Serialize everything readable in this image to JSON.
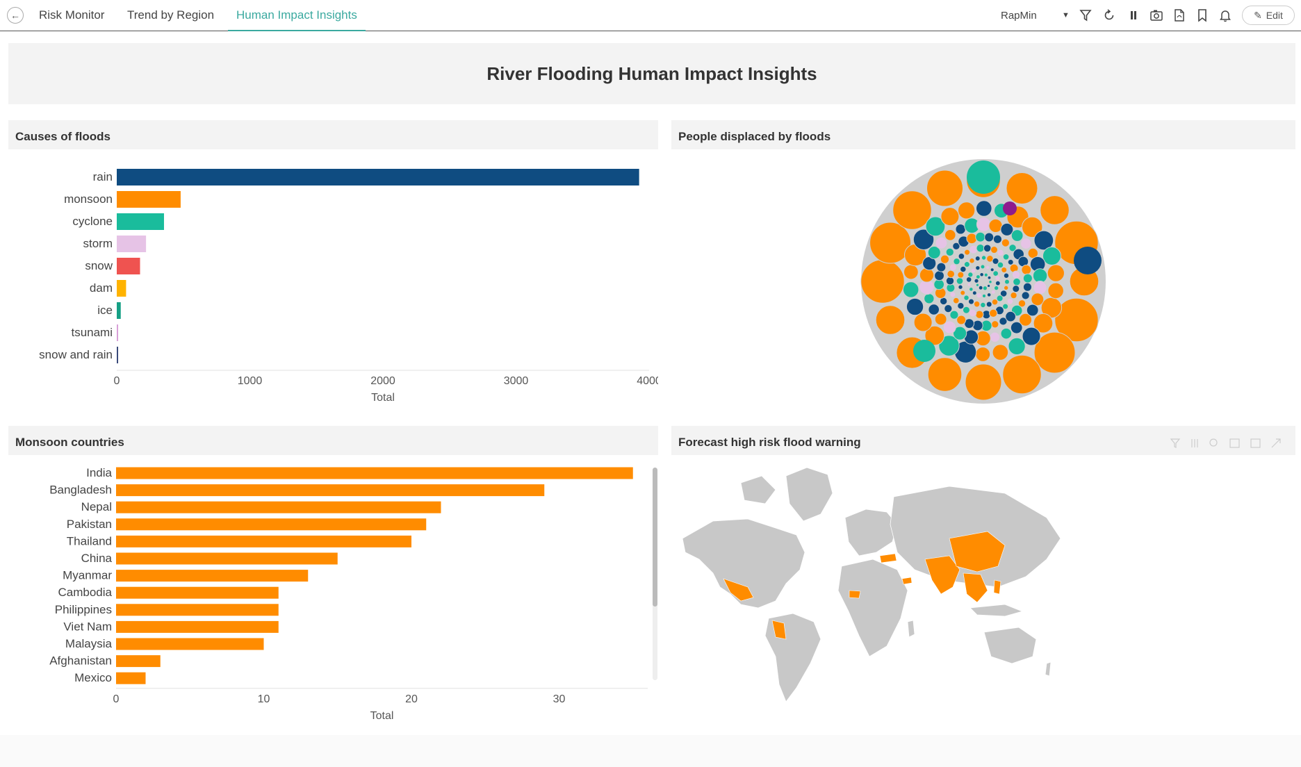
{
  "tabs": [
    {
      "label": "Risk Monitor"
    },
    {
      "label": "Trend by Region"
    },
    {
      "label": "Human Impact Insights"
    }
  ],
  "toolbar": {
    "user": "RapMin",
    "edit_label": "Edit",
    "icons": [
      "filter-icon",
      "refresh-icon",
      "pause-icon",
      "snapshot-icon",
      "pdf-icon",
      "bookmark-icon",
      "bell-icon"
    ]
  },
  "dashboard": {
    "title": "River Flooding Human Impact Insights"
  },
  "panels": {
    "causes": {
      "title": "Causes of floods"
    },
    "displaced": {
      "title": "People displaced by floods"
    },
    "monsoon": {
      "title": "Monsoon countries"
    },
    "forecast": {
      "title": "Forecast high risk flood warning"
    }
  },
  "colors": {
    "accent": "#3aa99f",
    "navy": "#0f4c81",
    "orange": "#ff8c00",
    "teal": "#1abc9c",
    "pink": "#e6b8e0",
    "red": "#ef5350",
    "amber": "#ffb300",
    "gray": "#c8c8c8"
  },
  "chart_data": [
    {
      "type": "bar",
      "orientation": "horizontal",
      "categories": [
        "rain",
        "monsoon",
        "cyclone",
        "storm",
        "snow",
        "dam",
        "ice",
        "tsunami",
        "snow and rain"
      ],
      "values": [
        3925,
        480,
        355,
        220,
        175,
        70,
        30,
        8,
        5
      ],
      "colors": [
        "#0f4c81",
        "#ff8c00",
        "#1abc9c",
        "#e6c3e6",
        "#ef5350",
        "#ffb300",
        "#16a085",
        "#d8a0d8",
        "#3a4a7a"
      ],
      "xlabel": "Total",
      "xlim": [
        0,
        4000
      ],
      "xticks": [
        0,
        1000,
        2000,
        3000,
        4000
      ]
    },
    {
      "type": "bar",
      "orientation": "horizontal",
      "categories": [
        "India",
        "Bangladesh",
        "Nepal",
        "Pakistan",
        "Thailand",
        "China",
        "Myanmar",
        "Cambodia",
        "Philippines",
        "Viet Nam",
        "Malaysia",
        "Afghanistan",
        "Mexico"
      ],
      "values": [
        35,
        29,
        22,
        21,
        20,
        15,
        13,
        11,
        11,
        11,
        10,
        3,
        2
      ],
      "color": "#ff8c00",
      "xlabel": "Total",
      "xlim": [
        0,
        36
      ],
      "xticks": [
        0,
        10,
        20,
        30
      ]
    }
  ]
}
